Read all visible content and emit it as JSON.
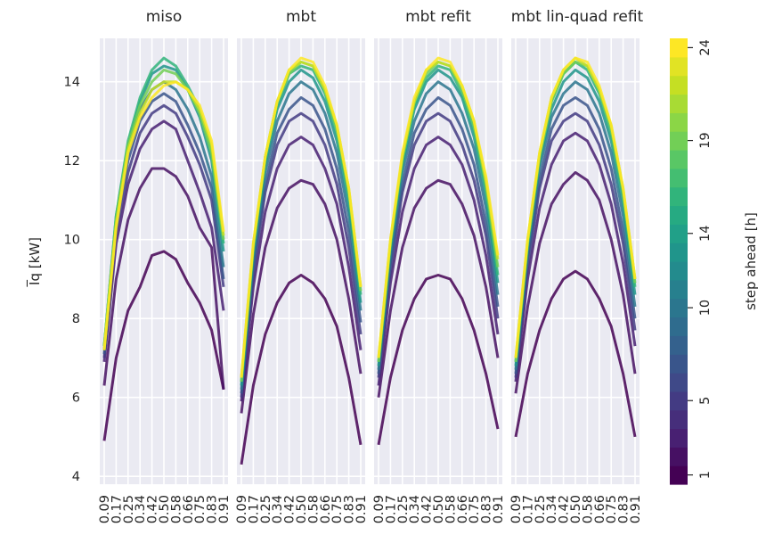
{
  "chart_data": {
    "type": "line",
    "panels": [
      "miso",
      "mbt",
      "mbt refit",
      "mbt lin-quad refit"
    ],
    "x": [
      "0.09",
      "0.17",
      "0.25",
      "0.34",
      "0.42",
      "0.50",
      "0.58",
      "0.66",
      "0.75",
      "0.83",
      "0.91"
    ],
    "x_values": [
      0.09,
      0.17,
      0.25,
      0.34,
      0.42,
      0.5,
      0.58,
      0.66,
      0.75,
      0.83,
      0.91
    ],
    "ylabel": "I̅q [kW]",
    "y_ticks": [
      "4",
      "6",
      "8",
      "10",
      "12",
      "14"
    ],
    "ylim": [
      3.8,
      15.1
    ],
    "grid": true,
    "colorbar": {
      "label": "step ahead [h]",
      "range": [
        1,
        24
      ],
      "ticks": [
        "1",
        "5",
        "10",
        "14",
        "19",
        "24"
      ],
      "colormap": "viridis",
      "colors": [
        "#440154",
        "#482173",
        "#433e85",
        "#38598c",
        "#2d708e",
        "#25858e",
        "#1e9b8a",
        "#2ab07f",
        "#52c569",
        "#86d549",
        "#c2df23",
        "#fde725"
      ]
    },
    "series_by_panel": {
      "miso": [
        {
          "step": 1,
          "values": [
            4.9,
            7.0,
            8.2,
            8.8,
            9.6,
            9.7,
            9.5,
            8.9,
            8.4,
            7.7,
            6.2
          ]
        },
        {
          "step": 2,
          "values": [
            6.3,
            9.0,
            10.5,
            11.3,
            11.8,
            11.8,
            11.6,
            11.1,
            10.3,
            9.8,
            6.2
          ]
        },
        {
          "step": 3,
          "values": [
            6.9,
            9.9,
            11.4,
            12.3,
            12.8,
            13.0,
            12.8,
            12.0,
            11.2,
            10.3,
            8.2
          ]
        },
        {
          "step": 5,
          "values": [
            7.0,
            10.2,
            11.7,
            12.7,
            13.2,
            13.4,
            13.2,
            12.6,
            11.9,
            11.0,
            8.8
          ]
        },
        {
          "step": 7,
          "values": [
            7.1,
            10.4,
            12.0,
            13.0,
            13.5,
            13.7,
            13.5,
            12.9,
            12.2,
            11.3,
            9.0
          ]
        },
        {
          "step": 10,
          "values": [
            7.2,
            10.5,
            12.2,
            13.3,
            13.8,
            14.0,
            13.8,
            13.3,
            12.6,
            11.6,
            9.3
          ]
        },
        {
          "step": 13,
          "values": [
            7.3,
            10.6,
            12.4,
            13.5,
            14.2,
            14.4,
            14.3,
            13.8,
            13.1,
            12.0,
            9.7
          ]
        },
        {
          "step": 16,
          "values": [
            7.3,
            10.6,
            12.5,
            13.6,
            14.3,
            14.6,
            14.4,
            13.9,
            13.3,
            12.2,
            9.9
          ]
        },
        {
          "step": 19,
          "values": [
            7.3,
            10.5,
            12.4,
            13.4,
            14.0,
            14.3,
            14.2,
            13.8,
            13.2,
            12.2,
            10.0
          ]
        },
        {
          "step": 22,
          "values": [
            7.2,
            10.4,
            12.3,
            13.2,
            13.8,
            14.0,
            14.0,
            13.8,
            13.3,
            12.4,
            10.1
          ]
        },
        {
          "step": 24,
          "values": [
            7.2,
            10.3,
            12.2,
            13.1,
            13.6,
            13.9,
            14.0,
            13.8,
            13.4,
            12.5,
            10.2
          ]
        }
      ],
      "mbt": [
        {
          "step": 1,
          "values": [
            4.3,
            6.3,
            7.6,
            8.4,
            8.9,
            9.1,
            8.9,
            8.5,
            7.8,
            6.5,
            4.8
          ]
        },
        {
          "step": 2,
          "values": [
            5.6,
            8.1,
            9.8,
            10.8,
            11.3,
            11.5,
            11.4,
            10.9,
            10.0,
            8.5,
            6.6
          ]
        },
        {
          "step": 3,
          "values": [
            5.9,
            8.8,
            10.7,
            11.8,
            12.4,
            12.6,
            12.4,
            11.8,
            10.9,
            9.3,
            7.2
          ]
        },
        {
          "step": 5,
          "values": [
            6.0,
            9.1,
            11.2,
            12.4,
            13.0,
            13.2,
            13.0,
            12.4,
            11.4,
            9.8,
            7.6
          ]
        },
        {
          "step": 7,
          "values": [
            6.1,
            9.3,
            11.4,
            12.7,
            13.3,
            13.6,
            13.4,
            12.8,
            11.8,
            10.2,
            7.9
          ]
        },
        {
          "step": 10,
          "values": [
            6.2,
            9.5,
            11.7,
            13.0,
            13.7,
            14.0,
            13.8,
            13.2,
            12.2,
            10.6,
            8.2
          ]
        },
        {
          "step": 13,
          "values": [
            6.3,
            9.7,
            11.9,
            13.3,
            14.0,
            14.3,
            14.1,
            13.5,
            12.5,
            10.9,
            8.4
          ]
        },
        {
          "step": 16,
          "values": [
            6.4,
            9.8,
            12.0,
            13.4,
            14.2,
            14.4,
            14.3,
            13.7,
            12.7,
            11.1,
            8.6
          ]
        },
        {
          "step": 19,
          "values": [
            6.4,
            9.8,
            12.1,
            13.5,
            14.2,
            14.5,
            14.4,
            13.8,
            12.8,
            11.2,
            8.7
          ]
        },
        {
          "step": 22,
          "values": [
            6.5,
            9.9,
            12.1,
            13.5,
            14.3,
            14.5,
            14.4,
            13.8,
            12.9,
            11.3,
            8.8
          ]
        },
        {
          "step": 24,
          "values": [
            6.5,
            9.9,
            12.1,
            13.5,
            14.3,
            14.6,
            14.5,
            13.9,
            12.9,
            11.3,
            8.8
          ]
        }
      ],
      "mbt refit": [
        {
          "step": 1,
          "values": [
            4.8,
            6.5,
            7.7,
            8.5,
            9.0,
            9.1,
            9.0,
            8.5,
            7.7,
            6.6,
            5.2
          ]
        },
        {
          "step": 2,
          "values": [
            6.0,
            8.2,
            9.8,
            10.8,
            11.3,
            11.5,
            11.4,
            10.9,
            10.1,
            8.8,
            7.0
          ]
        },
        {
          "step": 3,
          "values": [
            6.3,
            8.9,
            10.7,
            11.8,
            12.4,
            12.6,
            12.4,
            11.9,
            11.0,
            9.6,
            7.6
          ]
        },
        {
          "step": 5,
          "values": [
            6.5,
            9.2,
            11.2,
            12.4,
            13.0,
            13.2,
            13.0,
            12.4,
            11.5,
            10.1,
            8.0
          ]
        },
        {
          "step": 7,
          "values": [
            6.6,
            9.4,
            11.4,
            12.7,
            13.3,
            13.6,
            13.4,
            12.8,
            11.9,
            10.4,
            8.3
          ]
        },
        {
          "step": 10,
          "values": [
            6.7,
            9.6,
            11.7,
            13.0,
            13.7,
            14.0,
            13.8,
            13.2,
            12.3,
            10.8,
            8.6
          ]
        },
        {
          "step": 13,
          "values": [
            6.8,
            9.8,
            11.9,
            13.3,
            14.0,
            14.3,
            14.1,
            13.6,
            12.6,
            11.1,
            8.9
          ]
        },
        {
          "step": 16,
          "values": [
            6.9,
            9.9,
            12.0,
            13.4,
            14.1,
            14.4,
            14.3,
            13.7,
            12.8,
            11.3,
            9.1
          ]
        },
        {
          "step": 19,
          "values": [
            6.9,
            9.9,
            12.1,
            13.5,
            14.2,
            14.5,
            14.4,
            13.8,
            12.9,
            11.4,
            9.3
          ]
        },
        {
          "step": 22,
          "values": [
            7.0,
            10.0,
            12.1,
            13.5,
            14.3,
            14.5,
            14.4,
            13.9,
            13.0,
            11.5,
            9.5
          ]
        },
        {
          "step": 24,
          "values": [
            7.0,
            10.0,
            12.2,
            13.6,
            14.3,
            14.6,
            14.5,
            13.9,
            13.0,
            11.6,
            9.6
          ]
        }
      ],
      "mbt lin-quad refit": [
        {
          "step": 1,
          "values": [
            5.0,
            6.6,
            7.7,
            8.5,
            9.0,
            9.2,
            9.0,
            8.5,
            7.8,
            6.6,
            5.0
          ]
        },
        {
          "step": 2,
          "values": [
            6.1,
            8.3,
            9.9,
            10.9,
            11.4,
            11.7,
            11.5,
            11.0,
            10.0,
            8.6,
            6.6
          ]
        },
        {
          "step": 3,
          "values": [
            6.4,
            9.0,
            10.8,
            11.9,
            12.5,
            12.7,
            12.5,
            11.9,
            10.9,
            9.4,
            7.3
          ]
        },
        {
          "step": 5,
          "values": [
            6.5,
            9.3,
            11.3,
            12.5,
            13.0,
            13.2,
            13.0,
            12.4,
            11.4,
            9.9,
            7.7
          ]
        },
        {
          "step": 7,
          "values": [
            6.6,
            9.5,
            11.5,
            12.8,
            13.4,
            13.6,
            13.4,
            12.8,
            11.8,
            10.2,
            8.0
          ]
        },
        {
          "step": 10,
          "values": [
            6.7,
            9.7,
            11.8,
            13.1,
            13.7,
            14.0,
            13.8,
            13.2,
            12.2,
            10.6,
            8.3
          ]
        },
        {
          "step": 13,
          "values": [
            6.8,
            9.8,
            12.0,
            13.3,
            14.0,
            14.3,
            14.1,
            13.5,
            12.5,
            10.9,
            8.6
          ]
        },
        {
          "step": 16,
          "values": [
            6.9,
            9.9,
            12.1,
            13.5,
            14.2,
            14.5,
            14.3,
            13.7,
            12.7,
            11.1,
            8.8
          ]
        },
        {
          "step": 19,
          "values": [
            6.9,
            9.9,
            12.1,
            13.5,
            14.2,
            14.5,
            14.4,
            13.8,
            12.8,
            11.2,
            8.9
          ]
        },
        {
          "step": 22,
          "values": [
            7.0,
            10.0,
            12.2,
            13.6,
            14.3,
            14.6,
            14.4,
            13.8,
            12.9,
            11.3,
            9.0
          ]
        },
        {
          "step": 24,
          "values": [
            7.0,
            10.0,
            12.2,
            13.6,
            14.3,
            14.6,
            14.5,
            13.9,
            12.9,
            11.3,
            9.0
          ]
        }
      ]
    }
  }
}
